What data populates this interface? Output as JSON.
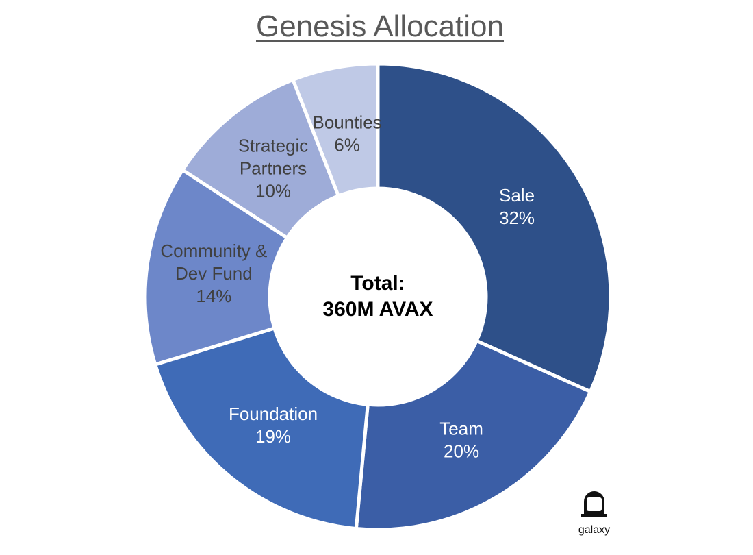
{
  "title": "Genesis Allocation",
  "chart_data": {
    "type": "pie",
    "donut": true,
    "title": "Genesis Allocation",
    "center_label": [
      "Total:",
      "360M AVAX"
    ],
    "slices": [
      {
        "name": "Sale",
        "label_lines": [
          "Sale"
        ],
        "value": 32,
        "value_label": "32%",
        "color": "#2e5089",
        "text_color": "#ffffff"
      },
      {
        "name": "Team",
        "label_lines": [
          "Team"
        ],
        "value": 20,
        "value_label": "20%",
        "color": "#3b5ea6",
        "text_color": "#ffffff"
      },
      {
        "name": "Foundation",
        "label_lines": [
          "Foundation"
        ],
        "value": 19,
        "value_label": "19%",
        "color": "#3f6bb7",
        "text_color": "#ffffff"
      },
      {
        "name": "Community & Dev Fund",
        "label_lines": [
          "Community &",
          "Dev Fund"
        ],
        "value": 14,
        "value_label": "14%",
        "color": "#6d87c9",
        "text_color": "#404040"
      },
      {
        "name": "Strategic Partners",
        "label_lines": [
          "Strategic",
          "Partners"
        ],
        "value": 10,
        "value_label": "10%",
        "color": "#9eacd8",
        "text_color": "#404040"
      },
      {
        "name": "Bounties",
        "label_lines": [
          "Bounties"
        ],
        "value": 6,
        "value_label": "6%",
        "color": "#bfc9e6",
        "text_color": "#404040"
      }
    ]
  },
  "logo": {
    "text": "galaxy",
    "icon": "galaxy-logo-icon"
  }
}
